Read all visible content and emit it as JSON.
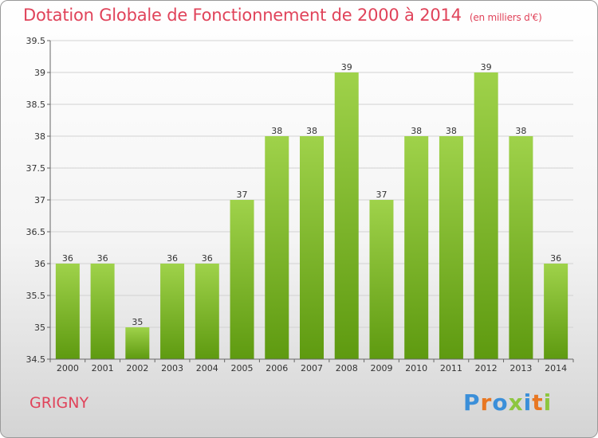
{
  "header": {
    "title": "Dotation Globale de Fonctionnement de 2000 à 2014",
    "subtitle": "(en milliers d'€)"
  },
  "footer": {
    "commune": "GRIGNY",
    "logo": "Proxiti"
  },
  "colors": {
    "title": "#e0435a",
    "bar_light": "#9fd24a",
    "bar_dark": "#5e9a10",
    "logo_letters": [
      "#3b8fd9",
      "#e87722",
      "#3b8fd9",
      "#8dc63f",
      "#3b8fd9",
      "#e87722",
      "#8dc63f"
    ]
  },
  "chart_data": {
    "type": "bar",
    "title": "Dotation Globale de Fonctionnement de 2000 à 2014",
    "subtitle": "(en milliers d'€)",
    "categories": [
      "2000",
      "2001",
      "2002",
      "2003",
      "2004",
      "2005",
      "2006",
      "2007",
      "2008",
      "2009",
      "2010",
      "2011",
      "2012",
      "2013",
      "2014"
    ],
    "values": [
      36,
      36,
      35,
      36,
      36,
      37,
      38,
      38,
      39,
      37,
      38,
      38,
      39,
      38,
      36
    ],
    "data_labels": [
      "36",
      "36",
      "35",
      "36",
      "36",
      "37",
      "38",
      "38",
      "39",
      "37",
      "38",
      "38",
      "39",
      "38",
      "36"
    ],
    "ylim": [
      34.5,
      39.5
    ],
    "yticks": [
      34.5,
      35,
      35.5,
      36,
      36.5,
      37,
      37.5,
      38,
      38.5,
      39,
      39.5
    ],
    "ytick_labels": [
      "34.5",
      "35",
      "35.5",
      "36",
      "36.5",
      "37",
      "37.5",
      "38",
      "38.5",
      "39",
      "39.5"
    ],
    "xlabel": "",
    "ylabel": "",
    "grid": true,
    "legend": false
  }
}
